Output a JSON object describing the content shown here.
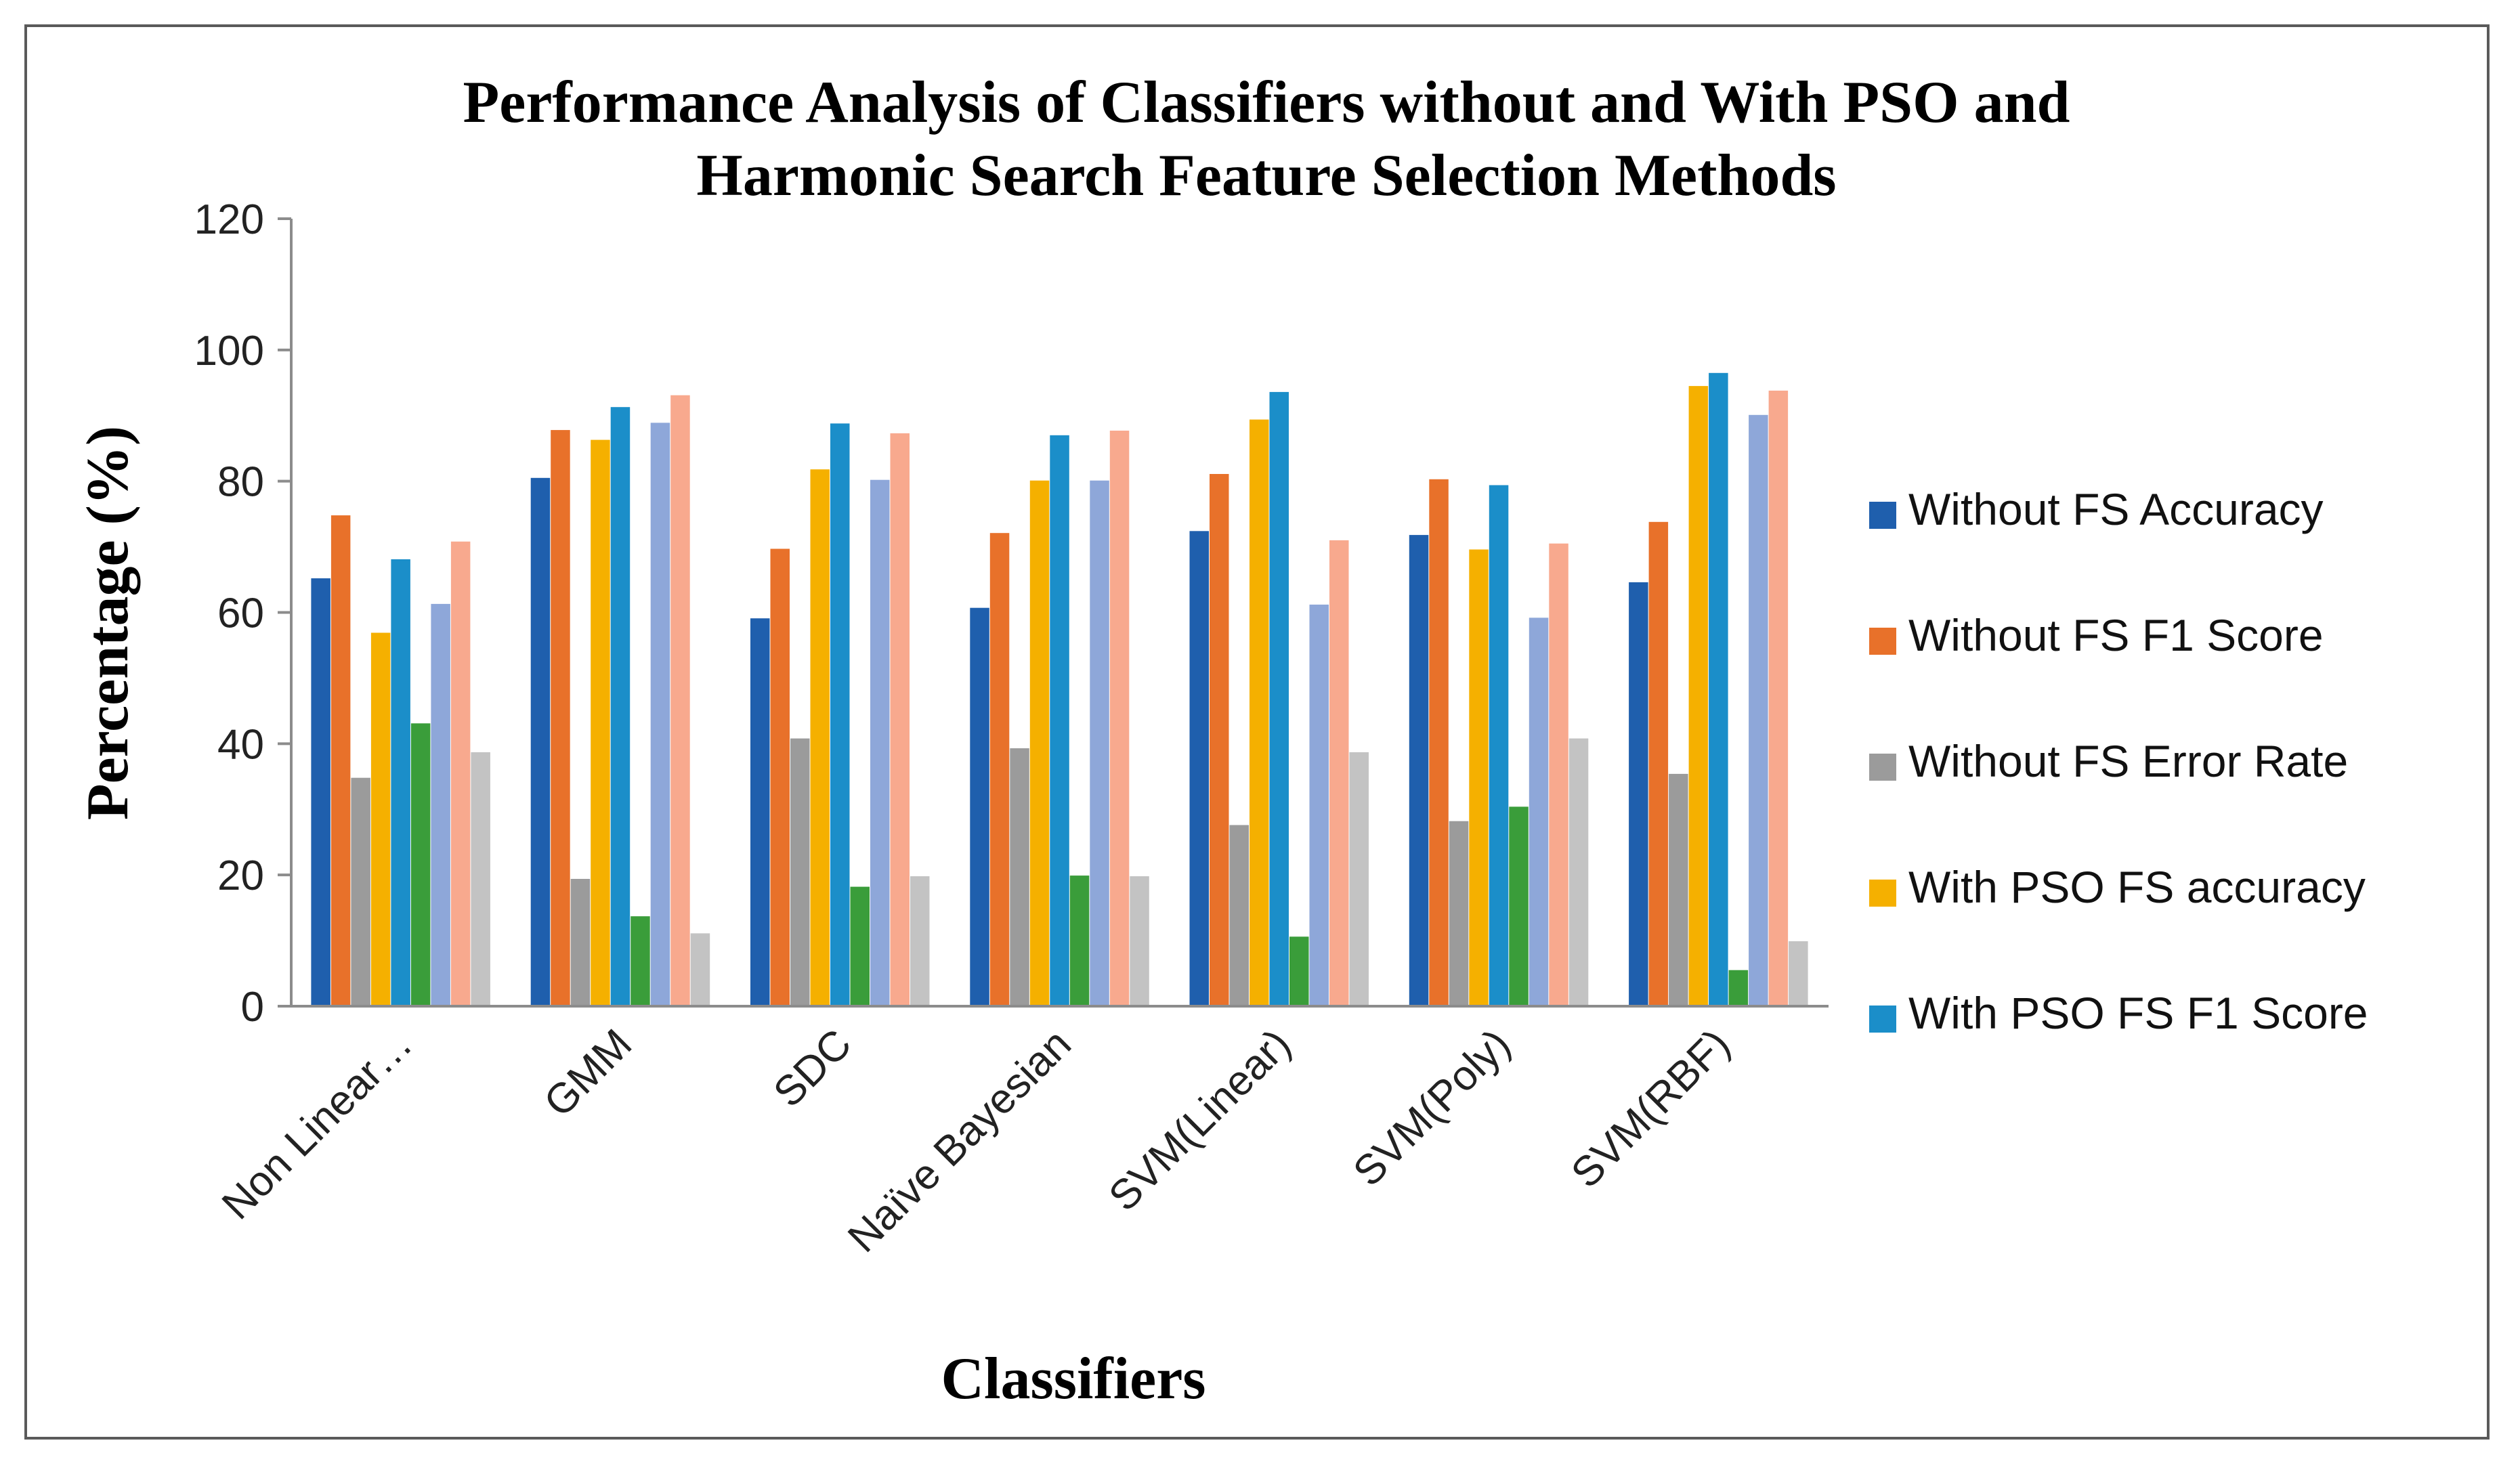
{
  "chart_data": {
    "type": "bar",
    "title": "Performance  Analysis of Classifiers without and With PSO and Harmonic Search Feature Selection Methods",
    "title_lines": [
      "Performance  Analysis of Classifiers without and With PSO and",
      "Harmonic Search Feature Selection Methods"
    ],
    "xlabel": "Classifiers",
    "ylabel": "Percentage (%)",
    "ylim": [
      0,
      120
    ],
    "yticks": [
      0,
      20,
      40,
      60,
      80,
      100,
      120
    ],
    "grid": false,
    "legend_position": "right",
    "categories": [
      "Non Linear…",
      "GMM",
      "SDC",
      "Naïve Bayesian",
      "SVM(Linear)",
      "SVM(Poly)",
      "SVM(RBF)"
    ],
    "series": [
      {
        "name": "Without FS Accuracy",
        "color": "#1F5FAD",
        "values": [
          65.2,
          80.5,
          59.1,
          60.7,
          72.4,
          71.8,
          64.6
        ]
      },
      {
        "name": "Without FS F1 Score",
        "color": "#E8712A",
        "values": [
          74.8,
          87.8,
          69.7,
          72.1,
          81.1,
          80.3,
          73.8
        ]
      },
      {
        "name": "Without FS Error Rate",
        "color": "#9B9B9B",
        "values": [
          34.8,
          19.4,
          40.8,
          39.3,
          27.6,
          28.2,
          35.4
        ]
      },
      {
        "name": "With PSO FS accuracy",
        "color": "#F5B000",
        "values": [
          56.9,
          86.3,
          81.8,
          80.1,
          89.4,
          69.6,
          94.5
        ]
      },
      {
        "name": "With PSO FS F1 Score",
        "color": "#1B8EC9",
        "values": [
          68.1,
          91.3,
          88.8,
          87.0,
          93.6,
          79.4,
          96.5
        ]
      },
      {
        "name": "",
        "color": "#3A9D3A",
        "values": [
          43.1,
          13.7,
          18.2,
          19.9,
          10.6,
          30.4,
          5.5
        ]
      },
      {
        "name": "",
        "color": "#8EA7D9",
        "values": [
          61.3,
          88.9,
          80.2,
          80.1,
          61.2,
          59.2,
          90.1
        ]
      },
      {
        "name": "",
        "color": "#F8A98E",
        "values": [
          70.8,
          93.1,
          87.3,
          87.7,
          71.0,
          70.5,
          93.8
        ]
      },
      {
        "name": "",
        "color": "#C3C3C3",
        "values": [
          38.7,
          11.1,
          19.8,
          19.8,
          38.7,
          40.8,
          9.9
        ]
      }
    ]
  }
}
